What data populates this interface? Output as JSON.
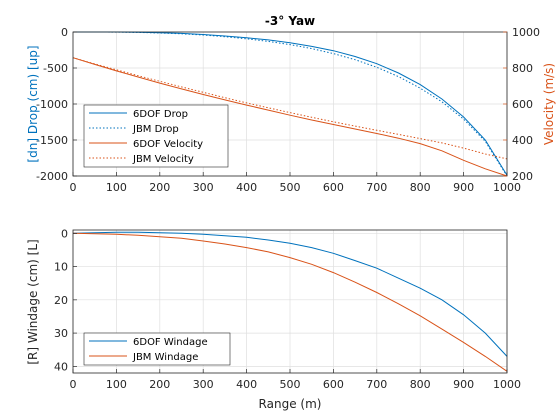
{
  "colors": {
    "blue": "#0072BD",
    "orange": "#D95319",
    "grid": "#DFDFDF",
    "axis": "#262626"
  },
  "chart_data": [
    {
      "type": "line",
      "title": "-3° Yaw",
      "xlabel": "",
      "ylabel_left": "[dn] Drop (cm) [up]",
      "ylabel_right": "Velocity (m/s)",
      "xlim": [
        0,
        1000
      ],
      "ylim_left": [
        -2000,
        0
      ],
      "ylim_right": [
        200,
        1000
      ],
      "xticks": [
        0,
        100,
        200,
        300,
        400,
        500,
        600,
        700,
        800,
        900,
        1000
      ],
      "yticks_left": [
        0,
        -500,
        -1000,
        -1500,
        -2000
      ],
      "yticks_right": [
        1000,
        800,
        600,
        400,
        200
      ],
      "grid": true,
      "legend_position": "bottom-left",
      "x": [
        0,
        50,
        100,
        150,
        200,
        250,
        300,
        350,
        400,
        450,
        500,
        550,
        600,
        650,
        700,
        750,
        800,
        850,
        900,
        950,
        1000
      ],
      "series": [
        {
          "name": "6DOF Drop",
          "axis": "left",
          "style": "solid",
          "color": "#0072BD",
          "values": [
            0,
            0,
            0,
            -4,
            -10,
            -20,
            -35,
            -55,
            -80,
            -110,
            -150,
            -200,
            -260,
            -340,
            -440,
            -570,
            -730,
            -930,
            -1180,
            -1500,
            -1990
          ]
        },
        {
          "name": "JBM Drop",
          "axis": "left",
          "style": "dotted",
          "color": "#0072BD",
          "values": [
            0,
            0,
            -2,
            -6,
            -14,
            -25,
            -42,
            -65,
            -95,
            -130,
            -175,
            -230,
            -300,
            -385,
            -490,
            -620,
            -780,
            -970,
            -1210,
            -1520,
            -2000
          ]
        },
        {
          "name": "6DOF Velocity",
          "axis": "right",
          "style": "solid",
          "color": "#D95319",
          "values": [
            857,
            820,
            784,
            750,
            716,
            684,
            653,
            623,
            594,
            566,
            538,
            511,
            486,
            461,
            436,
            410,
            380,
            340,
            287,
            240,
            200
          ]
        },
        {
          "name": "JBM Velocity",
          "axis": "right",
          "style": "dotted",
          "color": "#D95319",
          "values": [
            857,
            823,
            790,
            757,
            726,
            695,
            665,
            635,
            606,
            579,
            552,
            526,
            501,
            477,
            454,
            431,
            408,
            384,
            355,
            322,
            295
          ]
        }
      ]
    },
    {
      "type": "line",
      "title": "",
      "xlabel": "Range (m)",
      "ylabel_left": "[R] Windage (cm) [L]",
      "xlim": [
        0,
        1000
      ],
      "ylim_left": [
        42,
        -1
      ],
      "xticks": [
        0,
        100,
        200,
        300,
        400,
        500,
        600,
        700,
        800,
        900,
        1000
      ],
      "yticks_left": [
        0,
        10,
        20,
        30,
        40
      ],
      "grid": true,
      "legend_position": "bottom-left",
      "x": [
        0,
        50,
        100,
        150,
        200,
        250,
        300,
        350,
        400,
        450,
        500,
        550,
        600,
        650,
        700,
        750,
        800,
        850,
        900,
        950,
        1000
      ],
      "series": [
        {
          "name": "6DOF Windage",
          "axis": "left",
          "style": "solid",
          "color": "#0072BD",
          "values": [
            0,
            -0.2,
            -0.3,
            -0.3,
            -0.2,
            0,
            0.3,
            0.7,
            1.2,
            2.0,
            3.0,
            4.3,
            6.0,
            8.2,
            10.5,
            13.5,
            16.5,
            20.0,
            24.5,
            30.0,
            37.0
          ]
        },
        {
          "name": "JBM Windage",
          "axis": "left",
          "style": "solid",
          "color": "#D95319",
          "values": [
            0,
            0.1,
            0.3,
            0.6,
            1.0,
            1.5,
            2.3,
            3.2,
            4.3,
            5.6,
            7.3,
            9.3,
            11.8,
            14.7,
            17.8,
            21.2,
            24.8,
            28.8,
            32.8,
            37.0,
            41.5
          ]
        }
      ]
    }
  ]
}
